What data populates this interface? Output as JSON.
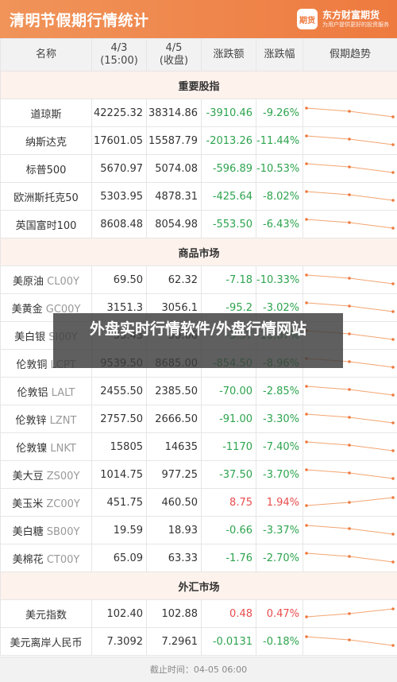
{
  "header": {
    "title": "清明节假期行情统计",
    "brand_name": "东方财富期货",
    "brand_slogan": "为用户提供更好的投资服务",
    "brand_icon": "期货"
  },
  "columns": {
    "name": "名称",
    "c1_line1": "4/3",
    "c1_line2": "(15:00)",
    "c2_line1": "4/5",
    "c2_line2": "(收盘)",
    "change": "涨跌额",
    "pct": "涨跌幅",
    "trend": "假期趋势"
  },
  "colors": {
    "up": "#e84c4c",
    "down": "#2da44e",
    "accent": "#ee7a3f"
  },
  "sections": [
    {
      "title": "重要股指",
      "rows": [
        {
          "name": "道琼斯",
          "code": "",
          "v1": "42225.32",
          "v2": "38314.86",
          "chg": "-3910.46",
          "pct": "-9.26%",
          "dir": "down"
        },
        {
          "name": "纳斯达克",
          "code": "",
          "v1": "17601.05",
          "v2": "15587.79",
          "chg": "-2013.26",
          "pct": "-11.44%",
          "dir": "down"
        },
        {
          "name": "标普500",
          "code": "",
          "v1": "5670.97",
          "v2": "5074.08",
          "chg": "-596.89",
          "pct": "-10.53%",
          "dir": "down"
        },
        {
          "name": "欧洲斯托克50",
          "code": "",
          "v1": "5303.95",
          "v2": "4878.31",
          "chg": "-425.64",
          "pct": "-8.02%",
          "dir": "down"
        },
        {
          "name": "英国富时100",
          "code": "",
          "v1": "8608.48",
          "v2": "8054.98",
          "chg": "-553.50",
          "pct": "-6.43%",
          "dir": "down"
        }
      ]
    },
    {
      "title": "商品市场",
      "rows": [
        {
          "name": "美原油",
          "code": "CL00Y",
          "v1": "69.50",
          "v2": "62.32",
          "chg": "-7.18",
          "pct": "-10.33%",
          "dir": "down"
        },
        {
          "name": "美黄金",
          "code": "GC00Y",
          "v1": "3151.3",
          "v2": "3056.1",
          "chg": "-95.2",
          "pct": "-3.02%",
          "dir": "down"
        },
        {
          "name": "美白银",
          "code": "SI00Y",
          "v1": "33.43",
          "v2": "30.06",
          "chg": "-3.37",
          "pct": "-10.07%",
          "dir": "down"
        },
        {
          "name": "伦敦铜",
          "code": "LCPT",
          "v1": "9539.50",
          "v2": "8685.00",
          "chg": "-854.50",
          "pct": "-8.96%",
          "dir": "down"
        },
        {
          "name": "伦敦铝",
          "code": "LALT",
          "v1": "2455.50",
          "v2": "2385.50",
          "chg": "-70.00",
          "pct": "-2.85%",
          "dir": "down"
        },
        {
          "name": "伦敦锌",
          "code": "LZNT",
          "v1": "2757.50",
          "v2": "2666.50",
          "chg": "-91.00",
          "pct": "-3.30%",
          "dir": "down"
        },
        {
          "name": "伦敦镍",
          "code": "LNKT",
          "v1": "15805",
          "v2": "14635",
          "chg": "-1170",
          "pct": "-7.40%",
          "dir": "down"
        },
        {
          "name": "美大豆",
          "code": "ZS00Y",
          "v1": "1014.75",
          "v2": "977.25",
          "chg": "-37.50",
          "pct": "-3.70%",
          "dir": "down"
        },
        {
          "name": "美玉米",
          "code": "ZC00Y",
          "v1": "451.75",
          "v2": "460.50",
          "chg": "8.75",
          "pct": "1.94%",
          "dir": "up"
        },
        {
          "name": "美白糖",
          "code": "SB00Y",
          "v1": "19.59",
          "v2": "18.93",
          "chg": "-0.66",
          "pct": "-3.37%",
          "dir": "down"
        },
        {
          "name": "美棉花",
          "code": "CT00Y",
          "v1": "65.09",
          "v2": "63.33",
          "chg": "-1.76",
          "pct": "-2.70%",
          "dir": "down"
        }
      ]
    },
    {
      "title": "外汇市场",
      "rows": [
        {
          "name": "美元指数",
          "code": "",
          "v1": "102.40",
          "v2": "102.88",
          "chg": "0.48",
          "pct": "0.47%",
          "dir": "up"
        },
        {
          "name": "美元离岸人民币",
          "code": "",
          "v1": "7.3092",
          "v2": "7.2961",
          "chg": "-0.0131",
          "pct": "-0.18%",
          "dir": "down"
        }
      ]
    }
  ],
  "footer": "截止时间：04-05 06:00",
  "overlay": "外盘实时行情软件/外盘行情网站"
}
